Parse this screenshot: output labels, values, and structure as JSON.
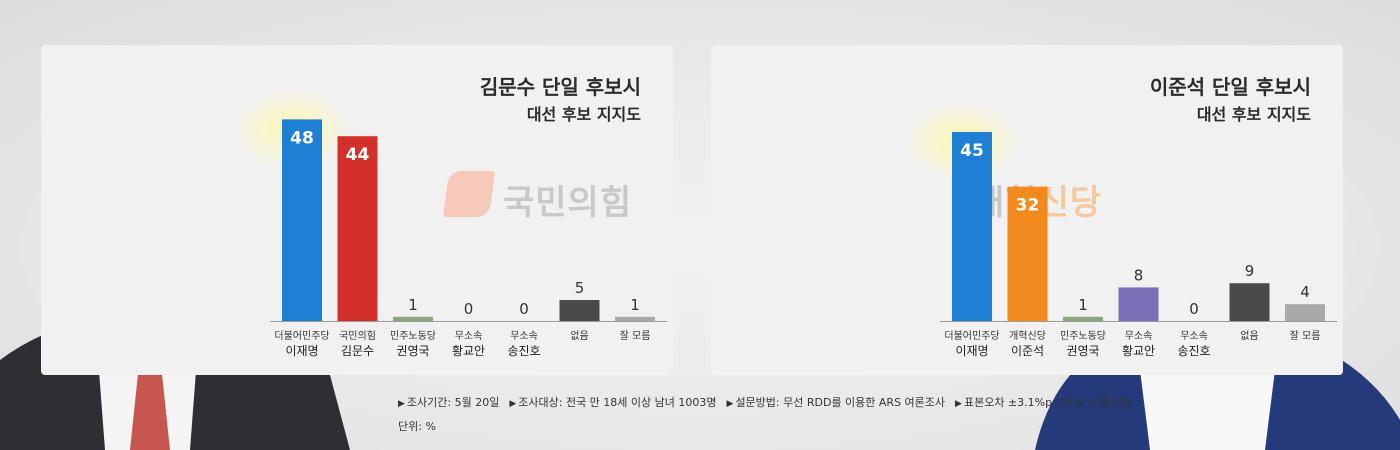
{
  "charts": [
    {
      "title": "김문수 단일 후보시",
      "subtitle": "대선 후보 지지도",
      "logo_text": "국민의힘",
      "chart_data": {
        "type": "bar",
        "title": "김문수 단일 후보시",
        "subtitle": "대선 후보 지지도",
        "categories": [
          {
            "party": "더불어민주당",
            "name": "이재명"
          },
          {
            "party": "국민의힘",
            "name": "김문수"
          },
          {
            "party": "민주노동당",
            "name": "권영국"
          },
          {
            "party": "무소속",
            "name": "황교안"
          },
          {
            "party": "무소속",
            "name": "송진호"
          },
          {
            "party": "없음",
            "name": ""
          },
          {
            "party": "잘 모름",
            "name": ""
          }
        ],
        "values": [
          48,
          44,
          1,
          0,
          0,
          5,
          1
        ],
        "colors": [
          "#1f7fd2",
          "#d3302c",
          "#8aa67a",
          "#9aa0a6",
          "#9aa0a6",
          "#4a4a4a",
          "#a9a9a9"
        ],
        "ylim": [
          0,
          50
        ],
        "grid": false
      }
    },
    {
      "title": "이준석 단일 후보시",
      "subtitle": "대선 후보 지지도",
      "logo_text_a": "개혁",
      "logo_text_b": "신당",
      "chart_data": {
        "type": "bar",
        "title": "이준석 단일 후보시",
        "subtitle": "대선 후보 지지도",
        "categories": [
          {
            "party": "더불어민주당",
            "name": "이재명"
          },
          {
            "party": "개혁신당",
            "name": "이준석"
          },
          {
            "party": "민주노동당",
            "name": "권영국"
          },
          {
            "party": "무소속",
            "name": "황교안"
          },
          {
            "party": "무소속",
            "name": "송진호"
          },
          {
            "party": "없음",
            "name": ""
          },
          {
            "party": "잘 모름",
            "name": ""
          }
        ],
        "values": [
          45,
          32,
          1,
          8,
          0,
          9,
          4
        ],
        "colors": [
          "#1f7fd2",
          "#f28a1f",
          "#8aa67a",
          "#7a70b8",
          "#9aa0a6",
          "#4a4a4a",
          "#a9a9a9"
        ],
        "ylim": [
          0,
          50
        ],
        "grid": false
      }
    }
  ],
  "footnote": {
    "items": [
      "조사기간: 5월 20일",
      "조사대상: 전국 만 18세 이상 남녀 1003명",
      "설문방법: 무선 RDD를 이용한 ARS 여론조사",
      "표본오차 ±3.1%p (95% 신뢰수준)"
    ],
    "unit": "단위: %"
  }
}
